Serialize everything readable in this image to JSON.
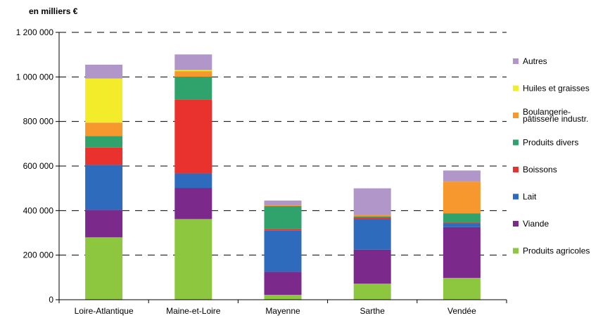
{
  "chart_data": {
    "type": "bar",
    "stacked": true,
    "unit_label": "en milliers €",
    "categories": [
      "Loire-Atlantique",
      "Maine-et-Loire",
      "Mayenne",
      "Sarthe",
      "Vendée"
    ],
    "ylim": [
      0,
      1200000
    ],
    "yticks": [
      0,
      200000,
      400000,
      600000,
      800000,
      1000000,
      1200000
    ],
    "ytick_labels": [
      "0",
      "200 000",
      "400 000",
      "600 000",
      "800 000",
      "1 000 000",
      "1 200 000"
    ],
    "grid": true,
    "legend_position": "right",
    "series": [
      {
        "name": "Produits agricoles",
        "color": "#8dc63f",
        "values": [
          280000,
          362000,
          22000,
          72000,
          98000
        ]
      },
      {
        "name": "Viande",
        "color": "#7b2a8c",
        "values": [
          123000,
          140000,
          103000,
          153000,
          228000
        ]
      },
      {
        "name": "Lait",
        "color": "#2e6bbd",
        "values": [
          202000,
          65000,
          185000,
          138000,
          15000
        ]
      },
      {
        "name": "Boissons",
        "color": "#e9322d",
        "values": [
          78000,
          332000,
          7000,
          7000,
          5000
        ]
      },
      {
        "name": "Produits divers",
        "color": "#2fa36b",
        "values": [
          52000,
          102000,
          103000,
          5000,
          42000
        ]
      },
      {
        "name": "Boulangerie-\npâtisserie industr.",
        "color": "#f7982e",
        "values": [
          60000,
          25000,
          3000,
          7000,
          142000
        ]
      },
      {
        "name": "Huiles et graisses",
        "color": "#f3ec2a",
        "values": [
          198000,
          5000,
          0,
          0,
          0
        ]
      },
      {
        "name": "Autres",
        "color": "#b196c9",
        "values": [
          62000,
          70000,
          22000,
          118000,
          50000
        ]
      }
    ]
  }
}
